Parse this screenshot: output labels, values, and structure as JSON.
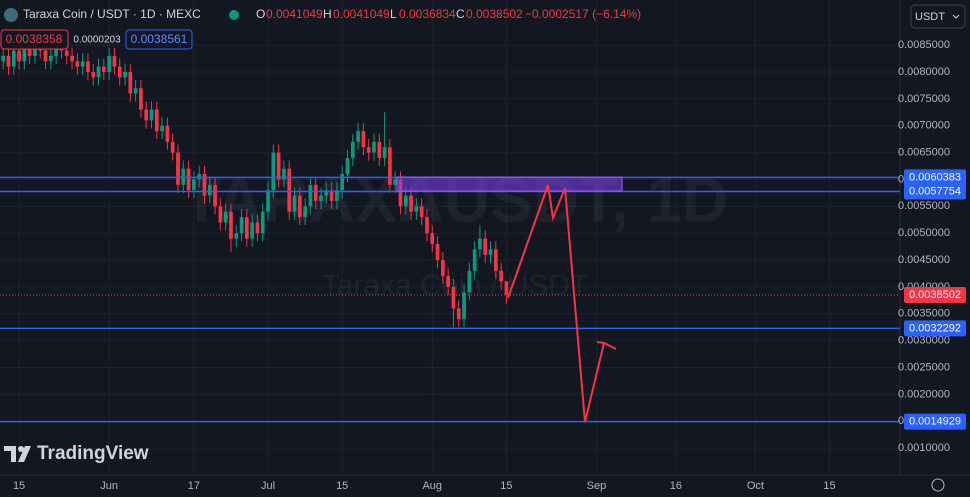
{
  "header": {
    "symbol": "Taraxa Coin / USDT · 1D · MEXC",
    "o_label": "O",
    "h_label": "H",
    "l_label": "L",
    "c_label": "C",
    "change": "−0.0002517 (−6.14%)",
    "sell": "0.0038358",
    "spread": "0.0000203",
    "buy": "0.0038561",
    "currency": "USDT"
  },
  "watermark": {
    "symbol": "TARAXAUSDT, 1D",
    "name": "Taraxa Coin / USDT"
  },
  "logo": "TradingView",
  "chart_data": {
    "type": "candlestick",
    "up_color": "#089981",
    "down_color": "#f23645",
    "open": [
      0.0082,
      0.0083,
      0.0081,
      0.0084,
      0.0082,
      0.0085,
      0.0083,
      0.0086,
      0.0084,
      0.0082,
      0.0083,
      0.0085,
      0.0084,
      0.0083,
      0.0082,
      0.0081,
      0.0082,
      0.008,
      0.0079,
      0.0081,
      0.008,
      0.0083,
      0.0081,
      0.0079,
      0.008,
      0.0076,
      0.0077,
      0.0073,
      0.0071,
      0.0073,
      0.0069,
      0.007,
      0.0067,
      0.0065,
      0.0059,
      0.0062,
      0.0058,
      0.006,
      0.0061,
      0.0057,
      0.0059,
      0.0055,
      0.0052,
      0.0054,
      0.0049,
      0.005,
      0.0053,
      0.0049,
      0.0052,
      0.005,
      0.0054,
      0.0058,
      0.0065,
      0.006,
      0.0062,
      0.0054,
      0.0057,
      0.0053,
      0.0055,
      0.0059,
      0.0056,
      0.0057,
      0.0058,
      0.0056,
      0.0058,
      0.0061,
      0.0064,
      0.0067,
      0.0069,
      0.0066,
      0.0065,
      0.0067,
      0.0064,
      0.0066,
      0.0059,
      0.006,
      0.0055,
      0.0057,
      0.0054,
      0.0055,
      0.0053,
      0.005,
      0.0048,
      0.0045,
      0.0042,
      0.004,
      0.0036,
      0.0034,
      0.0039,
      0.0043,
      0.0047,
      0.0049,
      0.0046,
      0.0047,
      0.0043,
      0.0041049
    ],
    "high": [
      0.00845,
      0.00845,
      0.00855,
      0.00855,
      0.00865,
      0.00865,
      0.00875,
      0.00875,
      0.00855,
      0.00845,
      0.00865,
      0.00865,
      0.00855,
      0.00845,
      0.00835,
      0.00835,
      0.00835,
      0.00815,
      0.00825,
      0.00825,
      0.00845,
      0.00845,
      0.00825,
      0.00815,
      0.00815,
      0.00785,
      0.00785,
      0.00745,
      0.00745,
      0.00745,
      0.00715,
      0.00715,
      0.00685,
      0.00665,
      0.00635,
      0.00635,
      0.00615,
      0.00625,
      0.00625,
      0.00605,
      0.00605,
      0.00565,
      0.00555,
      0.00555,
      0.00515,
      0.00545,
      0.00545,
      0.00535,
      0.00535,
      0.00555,
      0.00595,
      0.00665,
      0.00665,
      0.00635,
      0.00635,
      0.00585,
      0.00585,
      0.00565,
      0.00605,
      0.00605,
      0.00585,
      0.00595,
      0.00595,
      0.00595,
      0.00625,
      0.00655,
      0.00685,
      0.00705,
      0.00705,
      0.00675,
      0.00685,
      0.00685,
      0.00725,
      0.00675,
      0.00615,
      0.00615,
      0.00585,
      0.00585,
      0.00565,
      0.00565,
      0.00545,
      0.00515,
      0.00495,
      0.00465,
      0.00435,
      0.00415,
      0.00375,
      0.00405,
      0.00445,
      0.00485,
      0.00515,
      0.00505,
      0.00485,
      0.00485,
      0.00445,
      0.0041049
    ],
    "low": [
      0.00805,
      0.00795,
      0.00795,
      0.00805,
      0.00805,
      0.00815,
      0.00815,
      0.00825,
      0.00805,
      0.00805,
      0.00815,
      0.00825,
      0.00815,
      0.00805,
      0.00795,
      0.00795,
      0.00785,
      0.00775,
      0.00775,
      0.00785,
      0.00785,
      0.00795,
      0.00775,
      0.00775,
      0.00745,
      0.00745,
      0.00715,
      0.00695,
      0.00695,
      0.00675,
      0.00675,
      0.00655,
      0.00635,
      0.00575,
      0.00575,
      0.00565,
      0.00565,
      0.00585,
      0.00555,
      0.00555,
      0.00535,
      0.00505,
      0.00505,
      0.00465,
      0.00475,
      0.00485,
      0.00475,
      0.00475,
      0.00485,
      0.00485,
      0.00525,
      0.00565,
      0.00585,
      0.00585,
      0.00525,
      0.00525,
      0.00515,
      0.00515,
      0.00535,
      0.00545,
      0.00545,
      0.00555,
      0.00545,
      0.00545,
      0.00565,
      0.00595,
      0.00625,
      0.00655,
      0.00645,
      0.00635,
      0.00635,
      0.00625,
      0.00625,
      0.00575,
      0.00575,
      0.00535,
      0.00535,
      0.00525,
      0.00525,
      0.00515,
      0.00485,
      0.00465,
      0.00435,
      0.00405,
      0.00385,
      0.00325,
      0.00325,
      0.00325,
      0.00375,
      0.00415,
      0.00455,
      0.00445,
      0.00445,
      0.00415,
      0.00395,
      0.0036834
    ],
    "close": [
      0.0083,
      0.0081,
      0.0084,
      0.0082,
      0.0085,
      0.0083,
      0.0086,
      0.0084,
      0.0082,
      0.0083,
      0.0085,
      0.0084,
      0.0083,
      0.0082,
      0.0081,
      0.0082,
      0.008,
      0.0079,
      0.0081,
      0.008,
      0.0083,
      0.0081,
      0.0079,
      0.008,
      0.0076,
      0.0077,
      0.0073,
      0.0071,
      0.0073,
      0.0069,
      0.007,
      0.0067,
      0.0065,
      0.0059,
      0.0062,
      0.0058,
      0.006,
      0.0061,
      0.0057,
      0.0059,
      0.0055,
      0.0052,
      0.0054,
      0.0049,
      0.005,
      0.0053,
      0.0049,
      0.0052,
      0.005,
      0.0054,
      0.0058,
      0.0065,
      0.006,
      0.0062,
      0.0054,
      0.0057,
      0.0053,
      0.0055,
      0.0059,
      0.0056,
      0.0057,
      0.0058,
      0.0056,
      0.0058,
      0.0061,
      0.0064,
      0.0067,
      0.0069,
      0.0066,
      0.0065,
      0.0067,
      0.0064,
      0.0066,
      0.0059,
      0.006,
      0.0055,
      0.0057,
      0.0054,
      0.0055,
      0.0053,
      0.005,
      0.0048,
      0.0045,
      0.0042,
      0.004,
      0.0036,
      0.0034,
      0.0039,
      0.0043,
      0.0047,
      0.0049,
      0.0046,
      0.0047,
      0.0043,
      0.0041049,
      0.0038502
    ],
    "xlim": [
      -0.6,
      169.3
    ],
    "xticks": [
      {
        "value": 3,
        "label": "15"
      },
      {
        "value": 20,
        "label": "Jun"
      },
      {
        "value": 36,
        "label": "17"
      },
      {
        "value": 50,
        "label": "Jul"
      },
      {
        "value": 64,
        "label": "15"
      },
      {
        "value": 81,
        "label": "Aug"
      },
      {
        "value": 95,
        "label": "15"
      },
      {
        "value": 112,
        "label": "Sep"
      },
      {
        "value": 127,
        "label": "16"
      },
      {
        "value": 142,
        "label": "Oct"
      },
      {
        "value": 156,
        "label": "15"
      }
    ],
    "ylim": [
      0.0005,
      0.00934
    ],
    "yticks": [
      {
        "value": 0.001,
        "label": "0.0010000"
      },
      {
        "value": 0.0015,
        "label": "0.0015000"
      },
      {
        "value": 0.002,
        "label": "0.0020000"
      },
      {
        "value": 0.0025,
        "label": "0.0025000"
      },
      {
        "value": 0.003,
        "label": "0.0030000"
      },
      {
        "value": 0.0035,
        "label": "0.0035000"
      },
      {
        "value": 0.004,
        "label": "0.0040000"
      },
      {
        "value": 0.0045,
        "label": "0.0045000"
      },
      {
        "value": 0.005,
        "label": "0.0050000"
      },
      {
        "value": 0.0055,
        "label": "0.0055000"
      },
      {
        "value": 0.006,
        "label": "0.0060000"
      },
      {
        "value": 0.0065,
        "label": "0.0065000"
      },
      {
        "value": 0.007,
        "label": "0.0070000"
      },
      {
        "value": 0.0075,
        "label": "0.0075000"
      },
      {
        "value": 0.008,
        "label": "0.0080000"
      },
      {
        "value": 0.0085,
        "label": "0.0085000"
      }
    ],
    "levels": [
      {
        "value": 0.0060383,
        "color": "#2962ff"
      },
      {
        "value": 0.0057754,
        "color": "#2962ff"
      },
      {
        "value": 0.0032292,
        "color": "#2962ff"
      },
      {
        "value": 0.0014929,
        "color": "#2962ff"
      }
    ],
    "last_price": {
      "value": 0.0038502,
      "color": "#f23645"
    }
  }
}
